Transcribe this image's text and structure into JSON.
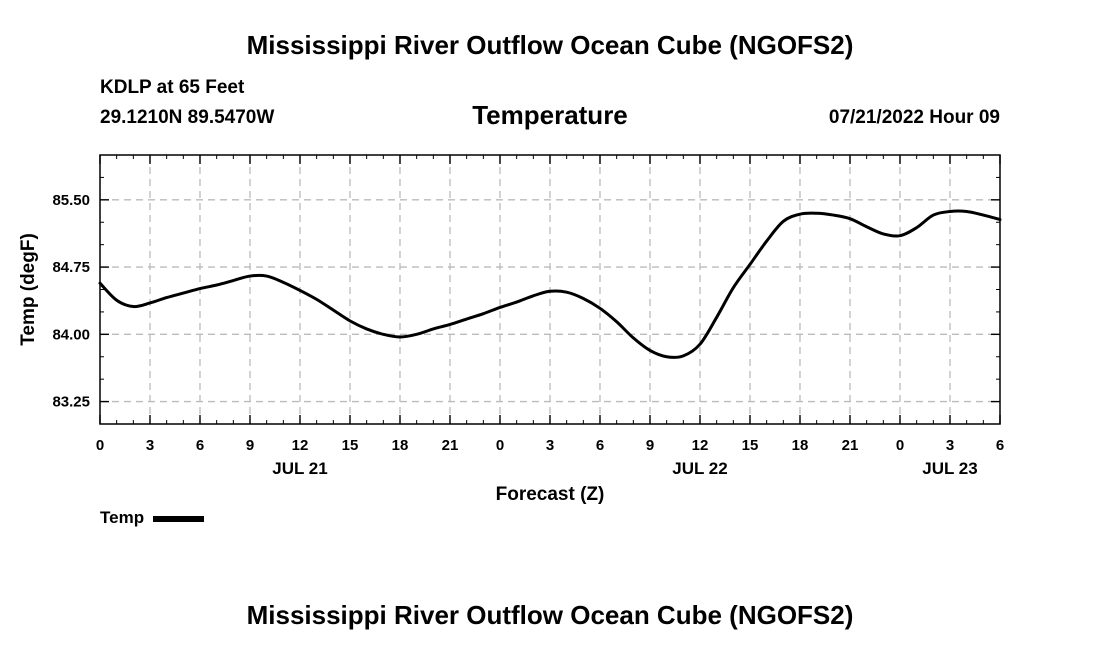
{
  "page": {
    "title": "Mississippi River Outflow Ocean Cube (NGOFS2)",
    "footer_title": "Mississippi River Outflow Ocean Cube (NGOFS2)",
    "station": "KDLP at 65 Feet",
    "coordinates": "29.1210N  89.5470W",
    "subtitle": "Temperature",
    "datetime": "07/21/2022 Hour 09"
  },
  "legend": {
    "label": "Temp",
    "color": "#000000"
  },
  "chart_data": {
    "type": "line",
    "title": "Temperature",
    "xlabel": "Forecast (Z)",
    "ylabel": "Temp (degF)",
    "xlim": [
      0,
      54
    ],
    "ylim": [
      83.0,
      86.0
    ],
    "grid": true,
    "x_ticks": [
      0,
      3,
      6,
      9,
      12,
      15,
      18,
      21,
      24,
      27,
      30,
      33,
      36,
      39,
      42,
      45,
      48,
      51,
      54
    ],
    "x_tick_labels": [
      "0",
      "3",
      "6",
      "9",
      "12",
      "15",
      "18",
      "21",
      "0",
      "3",
      "6",
      "9",
      "12",
      "15",
      "18",
      "21",
      "0",
      "3",
      "6"
    ],
    "date_labels": [
      {
        "x": 12,
        "label": "JUL 21"
      },
      {
        "x": 36,
        "label": "JUL 22"
      },
      {
        "x": 51,
        "label": "JUL 23"
      }
    ],
    "y_ticks": [
      83.25,
      84.0,
      84.75,
      85.5
    ],
    "y_tick_labels": [
      "83.25",
      "84.00",
      "84.75",
      "85.50"
    ],
    "series": [
      {
        "name": "Temp",
        "color": "#000000",
        "x": [
          0,
          1,
          2,
          3,
          4,
          5,
          6,
          7,
          8,
          9,
          10,
          11,
          12,
          13,
          14,
          15,
          16,
          17,
          18,
          19,
          20,
          21,
          22,
          23,
          24,
          25,
          26,
          27,
          28,
          29,
          30,
          31,
          32,
          33,
          34,
          35,
          36,
          37,
          38,
          39,
          40,
          41,
          42,
          43,
          44,
          45,
          46,
          47,
          48,
          49,
          50,
          51,
          52,
          53,
          54
        ],
        "values": [
          84.57,
          84.38,
          84.31,
          84.35,
          84.41,
          84.46,
          84.51,
          84.55,
          84.6,
          84.65,
          84.65,
          84.58,
          84.49,
          84.39,
          84.27,
          84.15,
          84.06,
          84.0,
          83.97,
          84.0,
          84.06,
          84.11,
          84.17,
          84.23,
          84.3,
          84.36,
          84.43,
          84.48,
          84.47,
          84.4,
          84.29,
          84.14,
          83.96,
          83.82,
          83.75,
          83.76,
          83.89,
          84.19,
          84.52,
          84.78,
          85.04,
          85.26,
          85.34,
          85.35,
          85.33,
          85.29,
          85.2,
          85.12,
          85.1,
          85.19,
          85.33,
          85.37,
          85.37,
          85.33,
          85.28
        ]
      }
    ]
  }
}
